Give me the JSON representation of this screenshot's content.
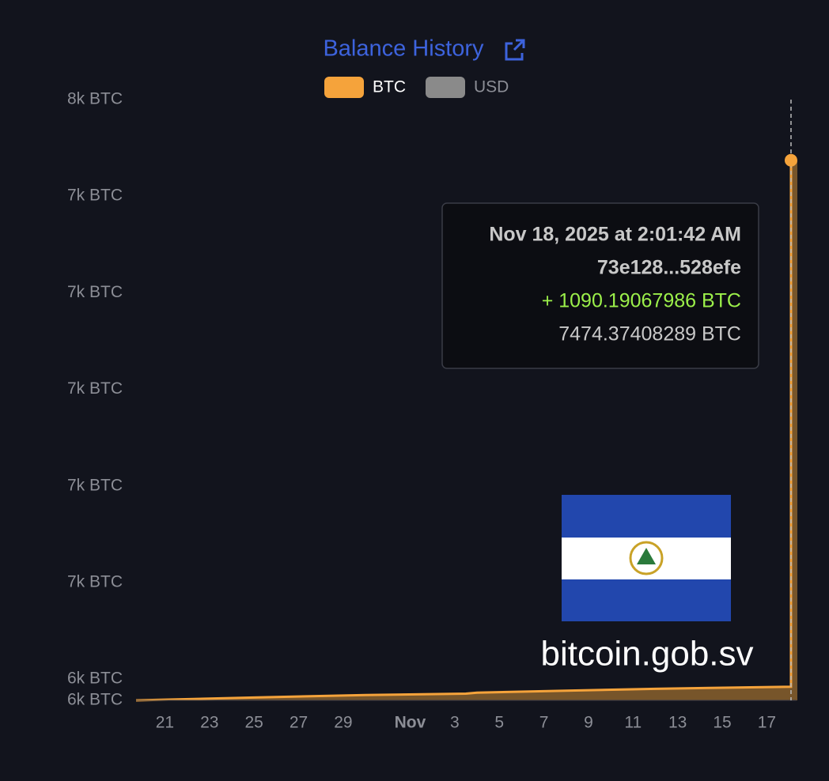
{
  "chart_data": {
    "type": "area",
    "title": "Balance History",
    "x": [
      "2025-10-19T17:00",
      "2025-10-25T00:00",
      "2025-10-30T00:00",
      "2025-11-03T12:00",
      "2025-11-04T00:00",
      "2025-11-08T00:00",
      "2025-11-12T00:00",
      "2025-11-18T01:59",
      "2025-11-18T02:01"
    ],
    "series": [
      {
        "name": "BTC",
        "color": "#f5a33b",
        "values": [
          6356,
          6362,
          6367,
          6370,
          6372,
          6376,
          6380,
          6384.18,
          7474.37408289
        ]
      },
      {
        "name": "USD",
        "color": "#8a8a8a",
        "visible": false,
        "values": [
          null,
          null,
          null,
          null,
          null,
          null,
          null,
          null,
          null
        ]
      }
    ],
    "xlim": [
      "2025-10-19T17:00",
      "2025-11-18T08:00"
    ],
    "xticks": [
      {
        "value": "2025-10-21",
        "label": "21"
      },
      {
        "value": "2025-10-23",
        "label": "23"
      },
      {
        "value": "2025-10-25",
        "label": "25"
      },
      {
        "value": "2025-10-27",
        "label": "27"
      },
      {
        "value": "2025-10-29",
        "label": "29"
      },
      {
        "value": "2025-11-01",
        "label": "Nov"
      },
      {
        "value": "2025-11-03",
        "label": "3"
      },
      {
        "value": "2025-11-05",
        "label": "5"
      },
      {
        "value": "2025-11-07",
        "label": "7"
      },
      {
        "value": "2025-11-09",
        "label": "9"
      },
      {
        "value": "2025-11-11",
        "label": "11"
      },
      {
        "value": "2025-11-13",
        "label": "13"
      },
      {
        "value": "2025-11-15",
        "label": "15"
      },
      {
        "value": "2025-11-17",
        "label": "17"
      }
    ],
    "ylim": [
      6356,
      7600
    ],
    "yticks": [
      {
        "value": 6356,
        "label": "6k BTC"
      },
      {
        "value": 6400,
        "label": "6k BTC"
      },
      {
        "value": 6600,
        "label": "7k BTC"
      },
      {
        "value": 6800,
        "label": "7k BTC"
      },
      {
        "value": 7000,
        "label": "7k BTC"
      },
      {
        "value": 7200,
        "label": "7k BTC"
      },
      {
        "value": 7400,
        "label": "7k BTC"
      },
      {
        "value": 7600,
        "label": "8k BTC"
      }
    ],
    "tooltip": {
      "date": "Nov 18, 2025 at 2:01:42 AM",
      "tx": "73e128...528efe",
      "change": "+ 1090.19067986 BTC",
      "balance": "7474.37408289 BTC"
    },
    "watermark": "bitcoin.gob.sv"
  }
}
